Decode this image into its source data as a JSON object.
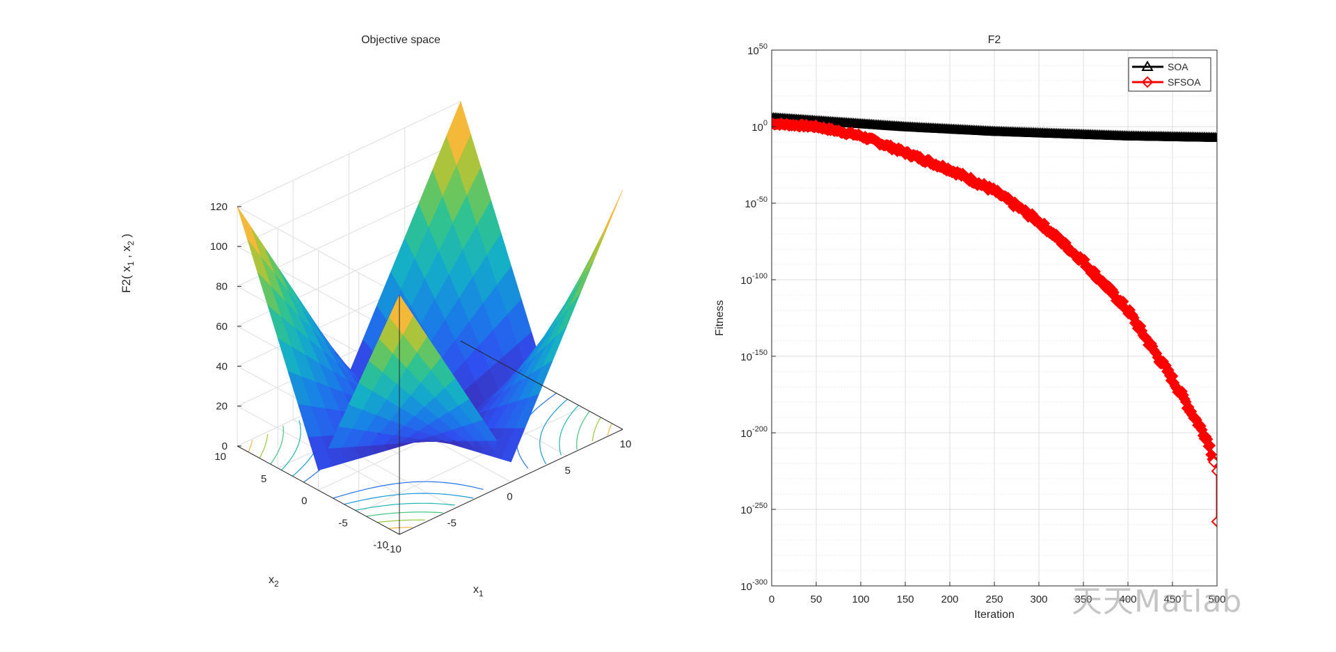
{
  "chart_data": [
    {
      "type": "surface3d",
      "title": "Objective space",
      "xlabel": "x",
      "xlabel_sub": "1",
      "ylabel": "x",
      "ylabel_sub": "2",
      "zlabel": "F2( x",
      "zlabel_sub1": "1",
      "zlabel_mid": " , x",
      "zlabel_sub2": "2",
      "zlabel_end": " )",
      "function": "|x1|+|x2|+|x1|*|x2|",
      "xlim": [
        -10,
        10
      ],
      "ylim": [
        -10,
        10
      ],
      "zlim": [
        0,
        120
      ],
      "x_ticks": [
        "-10",
        "-5",
        "0",
        "5",
        "10"
      ],
      "y_ticks": [
        "-10",
        "-5",
        "0",
        "5",
        "10"
      ],
      "z_ticks": [
        "0",
        "20",
        "40",
        "60",
        "80",
        "100",
        "120"
      ],
      "colormap": "parula",
      "contours": true,
      "grid": true
    },
    {
      "type": "line",
      "title": "F2",
      "xlabel": "Iteration",
      "ylabel": "Fitness",
      "y_scale": "log",
      "xlim": [
        0,
        500
      ],
      "ylim_exp": [
        -300,
        50
      ],
      "x_ticks": [
        "0",
        "50",
        "100",
        "150",
        "200",
        "250",
        "300",
        "350",
        "400",
        "450",
        "500"
      ],
      "y_ticks_base": "10",
      "y_ticks_exp": [
        "50",
        "0",
        "-50",
        "-100",
        "-150",
        "-200",
        "-250",
        "-300"
      ],
      "grid": true,
      "legend_position": "top-right",
      "series": [
        {
          "name": "SOA",
          "color": "#000000",
          "marker": "triangle",
          "iteration": [
            0,
            50,
            100,
            150,
            200,
            250,
            300,
            350,
            400,
            450,
            500
          ],
          "log10_fitness": [
            6,
            4,
            2,
            0,
            -1.5,
            -3,
            -4,
            -5,
            -6,
            -6.5,
            -7
          ]
        },
        {
          "name": "SFSOA",
          "color": "#ff0000",
          "marker": "diamond",
          "iteration": [
            0,
            50,
            100,
            150,
            200,
            250,
            300,
            350,
            400,
            450,
            480,
            490,
            500,
            500
          ],
          "log10_fitness": [
            2,
            0,
            -6,
            -17,
            -28,
            -42,
            -62,
            -88,
            -120,
            -165,
            -195,
            -205,
            -225,
            -258
          ]
        }
      ]
    }
  ],
  "watermark": "天天Matlab"
}
